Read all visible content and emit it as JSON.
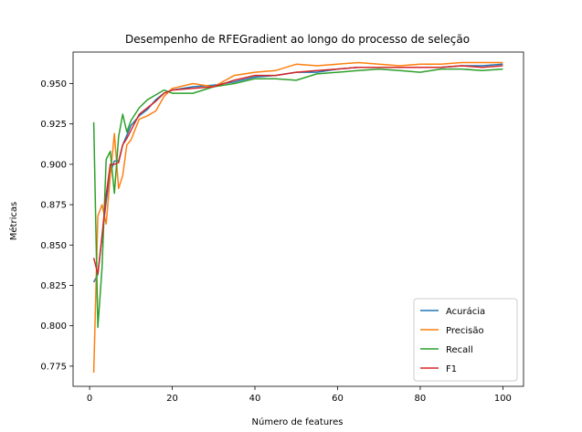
{
  "chart_data": {
    "type": "line",
    "title": "Desempenho de RFEGradient ao longo do processo de seleção",
    "xlabel": "Número de features",
    "ylabel": "Métricas",
    "xlim": [
      -4,
      105
    ],
    "ylim": [
      0.7625,
      0.9695
    ],
    "xticks": [
      0,
      20,
      40,
      60,
      80,
      100
    ],
    "yticks": [
      0.775,
      0.8,
      0.825,
      0.85,
      0.875,
      0.9,
      0.925,
      0.95
    ],
    "ytick_labels": [
      "0.775",
      "0.800",
      "0.825",
      "0.850",
      "0.875",
      "0.900",
      "0.925",
      "0.950"
    ],
    "grid": false,
    "legend_position": "lower-right",
    "series": [
      {
        "name": "Acurácia",
        "color": "#1f77b4",
        "x": [
          1,
          2,
          3,
          4,
          5,
          6,
          7,
          8,
          9,
          10,
          12,
          14,
          16,
          18,
          20,
          25,
          30,
          35,
          40,
          45,
          50,
          55,
          60,
          65,
          70,
          75,
          80,
          85,
          90,
          95,
          100
        ],
        "values": [
          0.827,
          0.832,
          0.855,
          0.877,
          0.895,
          0.902,
          0.902,
          0.912,
          0.918,
          0.924,
          0.93,
          0.934,
          0.94,
          0.944,
          0.946,
          0.948,
          0.949,
          0.951,
          0.954,
          0.955,
          0.957,
          0.957,
          0.959,
          0.96,
          0.96,
          0.96,
          0.96,
          0.96,
          0.961,
          0.961,
          0.962
        ]
      },
      {
        "name": "Precisão",
        "color": "#ff7f0e",
        "x": [
          1,
          2,
          3,
          4,
          5,
          6,
          7,
          8,
          9,
          10,
          12,
          14,
          16,
          18,
          20,
          25,
          30,
          35,
          40,
          45,
          50,
          55,
          60,
          65,
          70,
          75,
          80,
          85,
          90,
          95,
          100
        ],
        "values": [
          0.771,
          0.868,
          0.875,
          0.863,
          0.893,
          0.919,
          0.885,
          0.893,
          0.912,
          0.915,
          0.928,
          0.93,
          0.933,
          0.942,
          0.947,
          0.95,
          0.948,
          0.955,
          0.957,
          0.958,
          0.962,
          0.961,
          0.962,
          0.963,
          0.962,
          0.961,
          0.962,
          0.962,
          0.963,
          0.963,
          0.963
        ]
      },
      {
        "name": "Recall",
        "color": "#2ca02c",
        "x": [
          1,
          2,
          3,
          4,
          5,
          6,
          7,
          8,
          9,
          10,
          12,
          14,
          16,
          18,
          20,
          25,
          30,
          35,
          40,
          45,
          50,
          55,
          60,
          65,
          70,
          75,
          80,
          85,
          90,
          95,
          100
        ],
        "values": [
          0.926,
          0.799,
          0.836,
          0.903,
          0.908,
          0.882,
          0.917,
          0.931,
          0.92,
          0.927,
          0.935,
          0.94,
          0.943,
          0.946,
          0.944,
          0.944,
          0.948,
          0.95,
          0.953,
          0.953,
          0.952,
          0.956,
          0.957,
          0.958,
          0.959,
          0.958,
          0.957,
          0.959,
          0.959,
          0.958,
          0.959
        ]
      },
      {
        "name": "F1",
        "color": "#d62728",
        "x": [
          1,
          2,
          3,
          4,
          5,
          6,
          7,
          8,
          9,
          10,
          12,
          14,
          16,
          18,
          20,
          25,
          30,
          35,
          40,
          45,
          50,
          55,
          60,
          65,
          70,
          75,
          80,
          85,
          90,
          95,
          100
        ],
        "values": [
          0.842,
          0.832,
          0.856,
          0.881,
          0.9,
          0.9,
          0.901,
          0.912,
          0.916,
          0.921,
          0.931,
          0.935,
          0.939,
          0.944,
          0.946,
          0.947,
          0.948,
          0.952,
          0.955,
          0.955,
          0.957,
          0.958,
          0.959,
          0.96,
          0.96,
          0.96,
          0.96,
          0.96,
          0.961,
          0.96,
          0.961
        ]
      }
    ]
  }
}
